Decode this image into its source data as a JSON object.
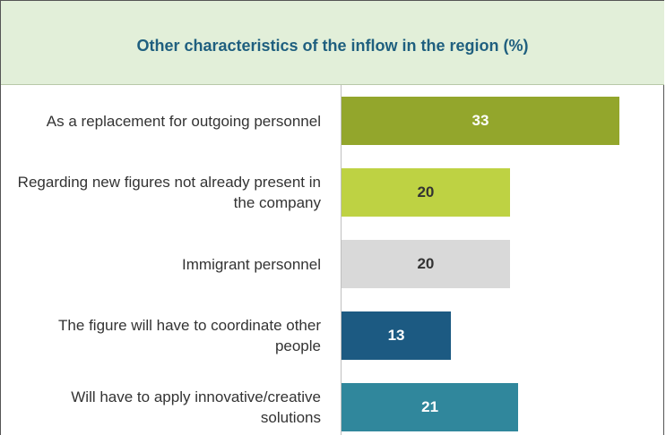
{
  "chart_data": {
    "type": "bar",
    "orientation": "horizontal",
    "title": "Other characteristics of the inflow in the region (%)",
    "categories": [
      "As a replacement for outgoing personnel",
      "Regarding new figures not already present in the company",
      "Immigrant personnel",
      "The figure will have to coordinate other people",
      "Will have to apply innovative/creative solutions"
    ],
    "values": [
      33,
      20,
      20,
      13,
      21
    ],
    "colors": [
      "#93a62c",
      "#bed243",
      "#d9d9d9",
      "#1c5a82",
      "#30879c"
    ]
  }
}
